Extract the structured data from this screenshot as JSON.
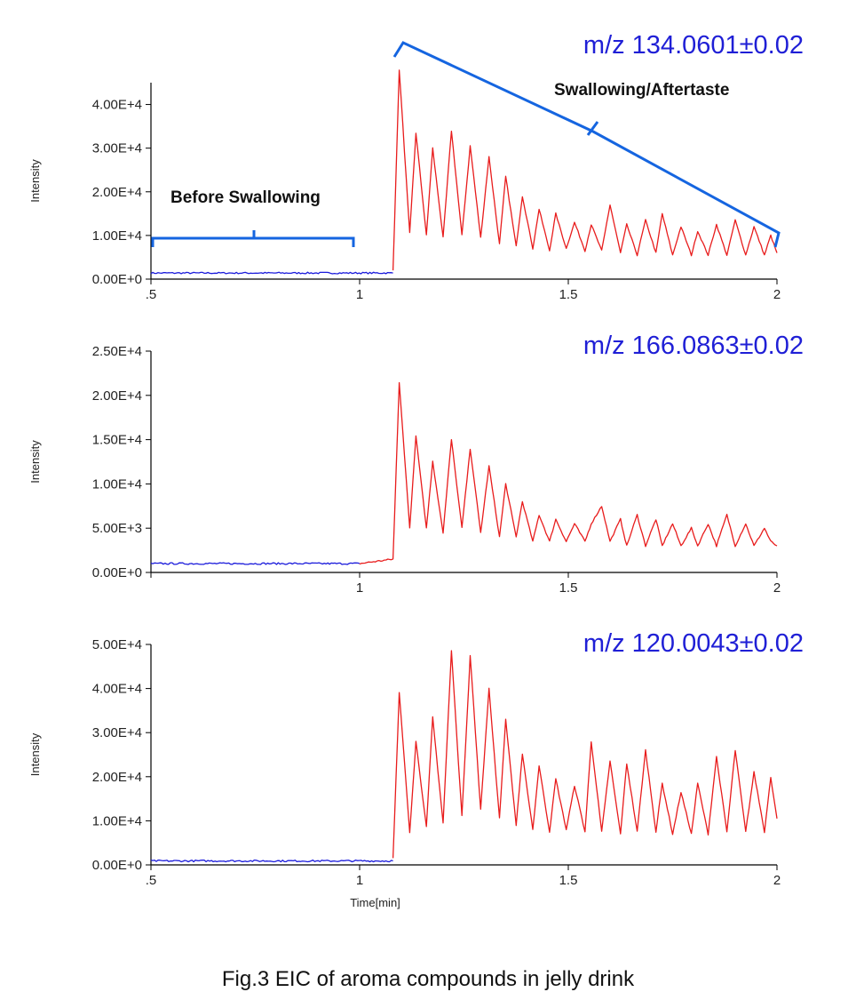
{
  "caption": "Fig.3  EIC of aroma compounds in jelly drink",
  "annotations": {
    "before": "Before Swallowing",
    "after": "Swallowing/Aftertaste"
  },
  "colors": {
    "before_trace": "#1a1adb",
    "after_trace": "#e81c1c",
    "bracket": "#1565e0",
    "mz_label": "#1f1fd6"
  },
  "chart_data": [
    {
      "type": "line",
      "title": "m/z 134.0601±0.02",
      "xlabel": "",
      "ylabel": "Intensity",
      "xlim": [
        0.5,
        2.0
      ],
      "ylim": [
        0,
        45000
      ],
      "x_ticks": [
        ".5",
        "1",
        "1.5",
        "2"
      ],
      "y_ticks": [
        "0.00E+0",
        "1.00E+4",
        "2.00E+4",
        "3.00E+4",
        "4.00E+4"
      ],
      "y_tick_values": [
        0,
        10000,
        20000,
        30000,
        40000
      ],
      "series": [
        {
          "color": "#1a1adb",
          "x": [
            0.5,
            1.08
          ],
          "y": [
            1400,
            1400
          ]
        },
        {
          "color": "#e81c1c",
          "x": [
            1.08,
            1.095,
            1.12,
            1.135,
            1.16,
            1.175,
            1.2,
            1.22,
            1.245,
            1.265,
            1.29,
            1.31,
            1.335,
            1.35,
            1.375,
            1.39,
            1.415,
            1.43,
            1.455,
            1.47,
            1.495,
            1.515,
            1.54,
            1.555,
            1.58,
            1.6,
            1.625,
            1.64,
            1.665,
            1.685,
            1.71,
            1.725,
            1.75,
            1.77,
            1.795,
            1.81,
            1.835,
            1.855,
            1.88,
            1.9,
            1.925,
            1.945,
            1.97,
            1.985,
            2.0
          ],
          "y": [
            2000,
            48000,
            10500,
            33500,
            10000,
            30000,
            9500,
            34000,
            10000,
            30500,
            9500,
            28000,
            8000,
            23500,
            7500,
            19000,
            7000,
            16000,
            6500,
            15000,
            7000,
            13000,
            6500,
            12500,
            6500,
            17000,
            6000,
            12500,
            5500,
            13500,
            6000,
            15000,
            5500,
            12000,
            5500,
            11000,
            5500,
            12500,
            5500,
            13500,
            5500,
            12000,
            5500,
            10000,
            6000
          ]
        }
      ]
    },
    {
      "type": "line",
      "title": "m/z 166.0863±0.02",
      "xlabel": "",
      "ylabel": "Intensity",
      "xlim": [
        0.5,
        2.0
      ],
      "ylim": [
        0,
        25000
      ],
      "x_ticks": [
        "",
        "1",
        "1.5",
        "2"
      ],
      "y_ticks": [
        "0.00E+0",
        "5.00E+3",
        "1.00E+4",
        "1.50E+4",
        "2.00E+4",
        "2.50E+4"
      ],
      "y_tick_values": [
        0,
        5000,
        10000,
        15000,
        20000,
        25000
      ],
      "series": [
        {
          "color": "#1a1adb",
          "x": [
            0.5,
            1.0
          ],
          "y": [
            1000,
            1000
          ]
        },
        {
          "color": "#e81c1c",
          "x": [
            1.0,
            1.08,
            1.095,
            1.12,
            1.135,
            1.16,
            1.175,
            1.2,
            1.22,
            1.245,
            1.265,
            1.29,
            1.31,
            1.335,
            1.35,
            1.375,
            1.39,
            1.415,
            1.43,
            1.455,
            1.47,
            1.495,
            1.515,
            1.54,
            1.555,
            1.58,
            1.6,
            1.625,
            1.64,
            1.665,
            1.685,
            1.71,
            1.725,
            1.75,
            1.77,
            1.795,
            1.81,
            1.835,
            1.855,
            1.88,
            1.9,
            1.925,
            1.945,
            1.97,
            1.985,
            2.0
          ],
          "y": [
            1000,
            1500,
            21500,
            5000,
            15500,
            5000,
            12500,
            4500,
            15000,
            5000,
            14000,
            4500,
            12000,
            4000,
            10000,
            4000,
            8000,
            3500,
            6500,
            3500,
            6000,
            3500,
            5500,
            3500,
            5500,
            7500,
            3500,
            6000,
            3000,
            6500,
            3000,
            6000,
            3000,
            5500,
            3000,
            5000,
            3000,
            5500,
            3000,
            6500,
            3000,
            5500,
            3000,
            5000,
            3500,
            3000
          ]
        }
      ]
    },
    {
      "type": "line",
      "title": "m/z 120.0043±0.02",
      "xlabel": "Time[min]",
      "ylabel": "Intensity",
      "xlim": [
        0.5,
        2.0
      ],
      "ylim": [
        0,
        50000
      ],
      "x_ticks": [
        ".5",
        "1",
        "1.5",
        "2"
      ],
      "y_ticks": [
        "0.00E+0",
        "1.00E+4",
        "2.00E+4",
        "3.00E+4",
        "4.00E+4",
        "5.00E+4"
      ],
      "y_tick_values": [
        0,
        10000,
        20000,
        30000,
        40000,
        50000
      ],
      "series": [
        {
          "color": "#1a1adb",
          "x": [
            0.5,
            1.08
          ],
          "y": [
            900,
            900
          ]
        },
        {
          "color": "#e81c1c",
          "x": [
            1.08,
            1.095,
            1.12,
            1.135,
            1.16,
            1.175,
            1.2,
            1.22,
            1.245,
            1.265,
            1.29,
            1.31,
            1.335,
            1.35,
            1.375,
            1.39,
            1.415,
            1.43,
            1.455,
            1.47,
            1.495,
            1.515,
            1.54,
            1.555,
            1.58,
            1.6,
            1.625,
            1.64,
            1.665,
            1.685,
            1.71,
            1.725,
            1.75,
            1.77,
            1.795,
            1.81,
            1.835,
            1.855,
            1.88,
            1.9,
            1.925,
            1.945,
            1.97,
            1.985,
            2.0
          ],
          "y": [
            1500,
            39000,
            7500,
            28000,
            8500,
            33500,
            9500,
            48500,
            11000,
            47500,
            12500,
            40000,
            10500,
            33000,
            9000,
            25000,
            8000,
            22500,
            7500,
            19500,
            8000,
            18000,
            7500,
            28000,
            7500,
            23500,
            7000,
            23000,
            7500,
            26000,
            7500,
            18500,
            7000,
            16500,
            7000,
            18500,
            7000,
            24500,
            7500,
            26000,
            7500,
            21000,
            7500,
            20000,
            10500
          ]
        }
      ]
    }
  ]
}
